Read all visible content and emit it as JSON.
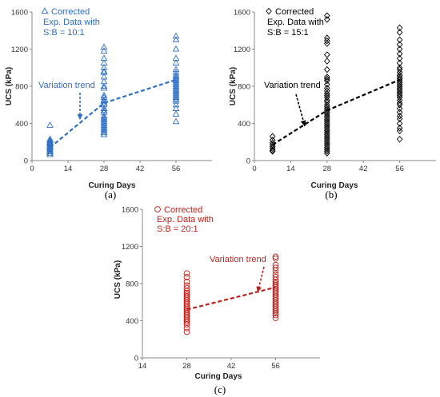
{
  "chart_data": [
    {
      "type": "scatter",
      "panel_label": "(a)",
      "xlabel": "Curing Days",
      "ylabel": "UCS  (kPa)",
      "xlim": [
        0,
        70
      ],
      "ylim": [
        0,
        1600
      ],
      "xticks": [
        0,
        14,
        28,
        42,
        56
      ],
      "yticks": [
        0,
        400,
        800,
        1200,
        1600
      ],
      "color": "#2e6fc4",
      "marker": "triangle",
      "legend": [
        "Corrected",
        "Exp. Data with",
        "S:B = 10:1"
      ],
      "legend_position": "top-left",
      "annotation": "Variation trend",
      "series": [
        {
          "x": 7,
          "values": [
            380,
            230,
            215,
            200,
            190,
            180,
            165,
            150,
            140,
            125,
            110,
            95,
            80,
            65
          ]
        },
        {
          "x": 28,
          "values": [
            1220,
            1180,
            1100,
            1050,
            1000,
            960,
            950,
            900,
            850,
            800,
            780,
            700,
            680,
            650,
            640,
            620,
            600,
            560,
            540,
            520,
            480,
            460,
            440,
            420,
            400,
            380,
            360,
            340,
            320,
            300,
            280
          ]
        },
        {
          "x": 56,
          "values": [
            1340,
            1300,
            1200,
            1100,
            1050,
            980,
            950,
            920,
            900,
            880,
            860,
            840,
            820,
            800,
            780,
            760,
            740,
            720,
            700,
            680,
            660,
            640,
            600,
            560,
            500,
            420
          ]
        }
      ],
      "trend": {
        "x": [
          7,
          28,
          56
        ],
        "y": [
          140,
          620,
          870
        ]
      }
    },
    {
      "type": "scatter",
      "panel_label": "(b)",
      "xlabel": "Curing Days",
      "ylabel": "UCS  (kPa)",
      "xlim": [
        0,
        70
      ],
      "ylim": [
        0,
        1600
      ],
      "xticks": [
        0,
        14,
        28,
        42,
        56
      ],
      "yticks": [
        0,
        400,
        800,
        1200,
        1600
      ],
      "color": "#000000",
      "marker": "diamond",
      "legend": [
        "Corrected",
        "Exp. Data with",
        "S:B = 15:1"
      ],
      "legend_position": "top-left",
      "annotation": "Variation trend",
      "series": [
        {
          "x": 7,
          "values": [
            260,
            220,
            190,
            170,
            150,
            130,
            110,
            100
          ]
        },
        {
          "x": 28,
          "values": [
            1560,
            1520,
            1320,
            1290,
            1260,
            1140,
            1070,
            980,
            900,
            880,
            860,
            820,
            780,
            750,
            720,
            700,
            680,
            650,
            630,
            600,
            580,
            560,
            540,
            520,
            500,
            480,
            460,
            440,
            420,
            400,
            380,
            360,
            340,
            320,
            300,
            280,
            260,
            240,
            220,
            200,
            180,
            160,
            140,
            120,
            100,
            80
          ]
        },
        {
          "x": 56,
          "values": [
            1430,
            1380,
            1300,
            1250,
            1200,
            1150,
            1100,
            1050,
            1000,
            980,
            950,
            920,
            900,
            880,
            860,
            840,
            820,
            800,
            780,
            760,
            740,
            720,
            700,
            680,
            650,
            620,
            600,
            560,
            520,
            480,
            450,
            400,
            350,
            320,
            230
          ]
        }
      ],
      "trend": {
        "x": [
          7,
          28,
          56
        ],
        "y": [
          170,
          540,
          870
        ]
      }
    },
    {
      "type": "scatter",
      "panel_label": "(c)",
      "xlabel": "Curing Days",
      "ylabel": "UCS  (kPa)",
      "xlim": [
        14,
        70
      ],
      "ylim": [
        0,
        1600
      ],
      "xticks": [
        14,
        28,
        42,
        56
      ],
      "yticks": [
        0,
        400,
        800,
        1200,
        1600
      ],
      "color": "#c0201a",
      "marker": "circle",
      "legend": [
        "Corrected",
        "Exp. Data with",
        "S:B = 20:1"
      ],
      "legend_position": "top-left",
      "annotation": "Variation trend",
      "series": [
        {
          "x": 28,
          "values": [
            910,
            870,
            820,
            780,
            750,
            720,
            700,
            680,
            660,
            640,
            620,
            600,
            580,
            560,
            540,
            520,
            500,
            480,
            460,
            440,
            420,
            400,
            380,
            360,
            320,
            280
          ]
        },
        {
          "x": 56,
          "values": [
            1090,
            1070,
            1000,
            970,
            940,
            900,
            870,
            840,
            820,
            800,
            780,
            760,
            740,
            720,
            700,
            680,
            660,
            640,
            620,
            600,
            580,
            560,
            540,
            520,
            500,
            480,
            460,
            430
          ]
        }
      ],
      "trend": {
        "x": [
          28,
          56
        ],
        "y": [
          520,
          760
        ]
      }
    }
  ]
}
